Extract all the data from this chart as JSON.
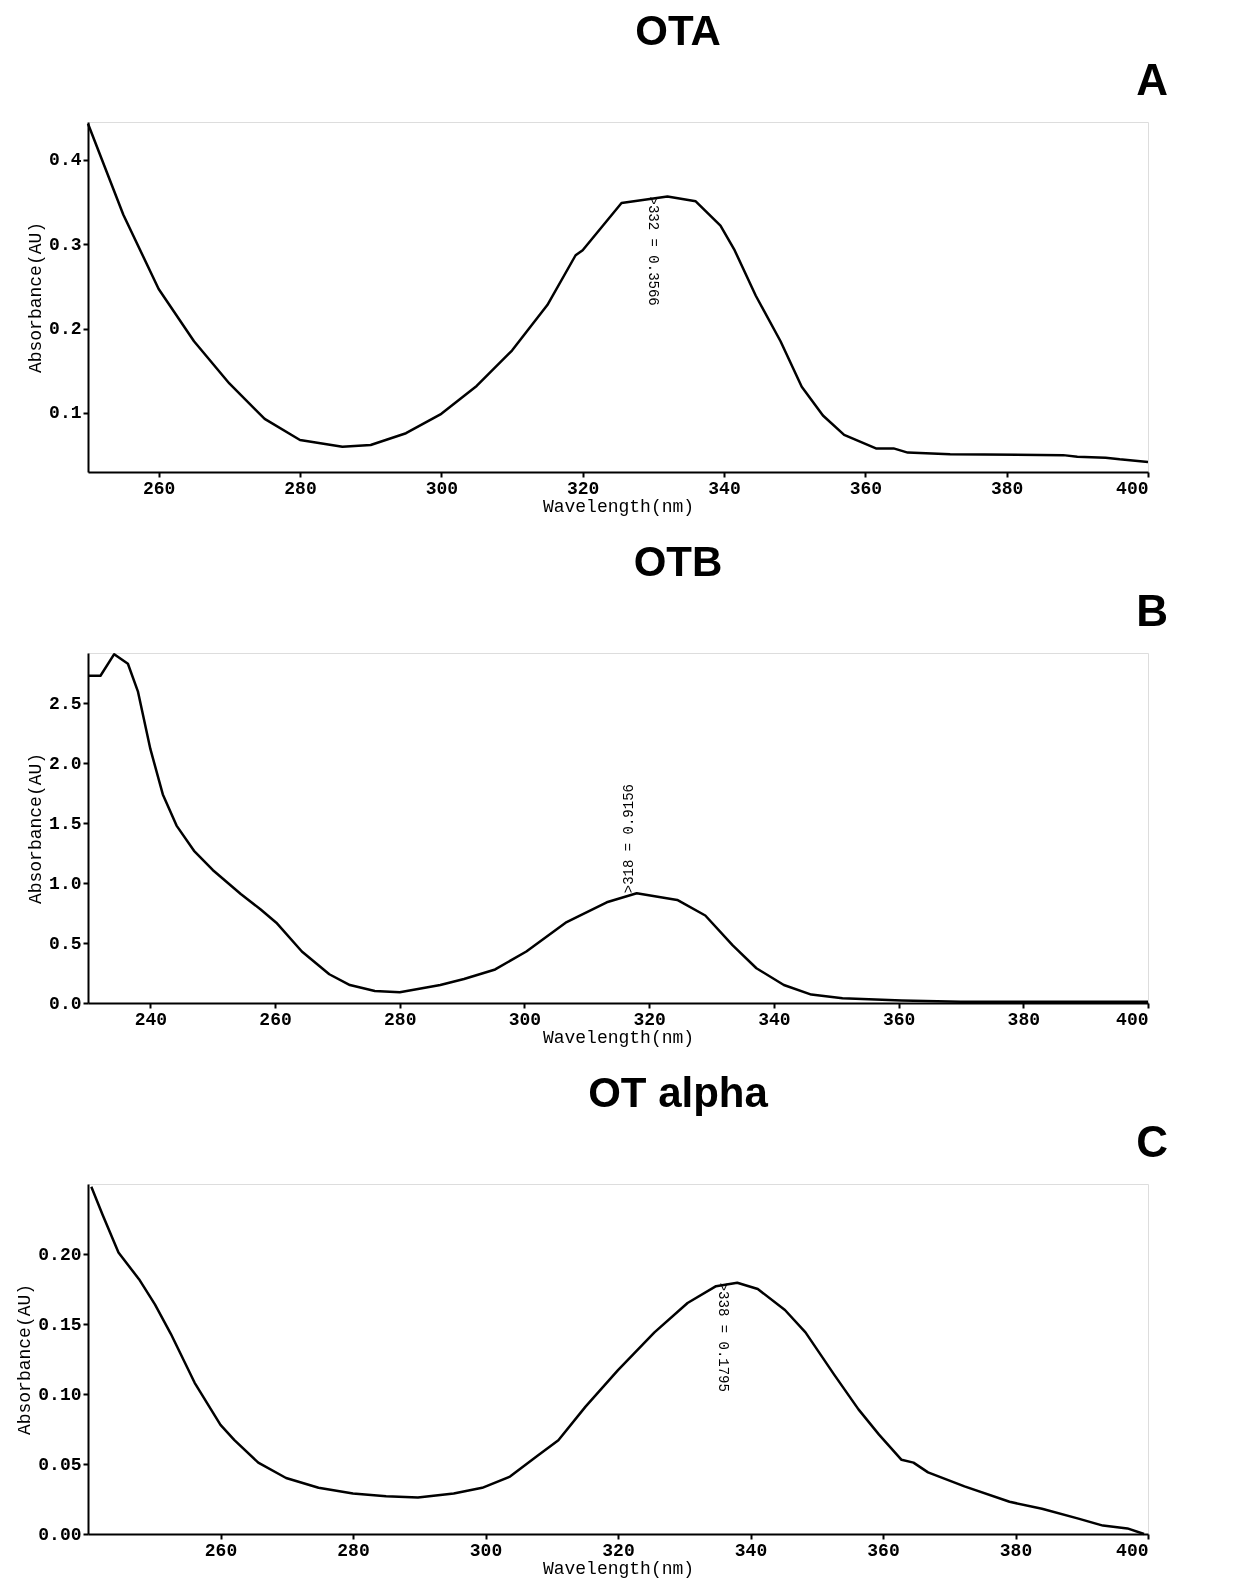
{
  "chart_data": [
    {
      "type": "line",
      "title": "OTA",
      "xlabel": "Wavelength(nm)",
      "ylabel": "Absorbance(AU)",
      "annotations": [
        "A",
        {
          "text": ">332 = 0.3566",
          "x": 332,
          "y": 0.3566
        }
      ],
      "xlim": [
        250,
        400
      ],
      "xticks": [
        260,
        280,
        300,
        320,
        340,
        360,
        380,
        400
      ],
      "ylim": [
        0.03,
        0.445
      ],
      "yticks": [
        {
          "value": 0.1,
          "label": "0.1"
        },
        {
          "value": 0.2,
          "label": "0.2"
        },
        {
          "value": 0.3,
          "label": "0.3"
        },
        {
          "value": 0.4,
          "label": "0.4"
        }
      ],
      "x": [
        250,
        255,
        260,
        265,
        270,
        275,
        280,
        286,
        290,
        295,
        300,
        305,
        310,
        315,
        319,
        320,
        325.5,
        332,
        336,
        339.5,
        341.5,
        344.5,
        348,
        351,
        354,
        357,
        361.5,
        364,
        366,
        372,
        388,
        390,
        394,
        396,
        400
      ],
      "series": [
        {
          "color": "#000000",
          "values": [
            0.443,
            0.335,
            0.247,
            0.185,
            0.135,
            0.093,
            0.068,
            0.06,
            0.062,
            0.076,
            0.099,
            0.132,
            0.174,
            0.228,
            0.287,
            0.293,
            0.349,
            0.3566,
            0.351,
            0.322,
            0.293,
            0.239,
            0.185,
            0.131,
            0.097,
            0.074,
            0.058,
            0.058,
            0.053,
            0.051,
            0.05,
            0.048,
            0.047,
            0.045,
            0.042
          ]
        }
      ]
    },
    {
      "type": "line",
      "title": "OTB",
      "xlabel": "Wavelength(nm)",
      "ylabel": "Absorbance(AU)",
      "annotations": [
        "B",
        {
          "text": ">318 = 0.9156",
          "x": 318,
          "y": 0.9156
        }
      ],
      "xlim": [
        230,
        400
      ],
      "xticks": [
        240,
        260,
        280,
        300,
        320,
        340,
        360,
        380,
        400
      ],
      "ylim": [
        0,
        2.92
      ],
      "yticks": [
        {
          "value": 0,
          "label": "0.0"
        },
        {
          "value": 0.5,
          "label": "0.5"
        },
        {
          "value": 1,
          "label": "1.0"
        },
        {
          "value": 1.5,
          "label": "1.5"
        },
        {
          "value": 2,
          "label": "2.0"
        },
        {
          "value": 2.5,
          "label": "2.5"
        }
      ],
      "x": [
        230,
        232,
        234.2,
        236.4,
        238,
        240,
        242,
        244.2,
        247,
        250,
        254.5,
        257.7,
        260.2,
        264.3,
        268.7,
        272,
        276,
        280,
        286.5,
        290.3,
        295.3,
        300.3,
        306.6,
        313.2,
        318,
        324.5,
        329,
        333.4,
        337.2,
        341.6,
        346,
        351,
        360.5,
        370,
        400
      ],
      "series": [
        {
          "color": "#000000",
          "values": [
            2.73,
            2.73,
            2.91,
            2.83,
            2.6,
            2.12,
            1.74,
            1.48,
            1.27,
            1.11,
            0.91,
            0.78,
            0.67,
            0.43,
            0.24,
            0.15,
            0.1,
            0.09,
            0.15,
            0.2,
            0.28,
            0.43,
            0.67,
            0.84,
            0.9156,
            0.86,
            0.73,
            0.48,
            0.29,
            0.15,
            0.07,
            0.04,
            0.02,
            0.01,
            0.01
          ]
        }
      ]
    },
    {
      "type": "line",
      "title": "OT alpha",
      "xlabel": "Wavelength(nm)",
      "ylabel": "Absorbance(AU)",
      "annotations": [
        "C",
        {
          "text": ">338 = 0.1795",
          "x": 338,
          "y": 0.1795
        }
      ],
      "xlim": [
        240,
        400
      ],
      "xticks": [
        260,
        280,
        300,
        320,
        340,
        360,
        380,
        400
      ],
      "ylim": [
        0,
        0.25
      ],
      "yticks": [
        {
          "value": 0,
          "label": "0.00"
        },
        {
          "value": 0.05,
          "label": "0.05"
        },
        {
          "value": 0.1,
          "label": "0.10"
        },
        {
          "value": 0.15,
          "label": "0.15"
        },
        {
          "value": 0.2,
          "label": "0.20"
        }
      ],
      "x": [
        240.5,
        242.2,
        244.6,
        247.7,
        250.1,
        252.5,
        256.1,
        260,
        262.1,
        265.7,
        269.9,
        274.8,
        280,
        285,
        289.8,
        295.2,
        299.5,
        303.7,
        307.9,
        311,
        315.1,
        320,
        325.5,
        330.5,
        334.8,
        338,
        341.1,
        345.2,
        348.3,
        352.6,
        356.3,
        359.4,
        362.8,
        364.6,
        366.8,
        372.3,
        379.1,
        384,
        389.5,
        393.2,
        396.9,
        399.4
      ],
      "series": [
        {
          "color": "#000000",
          "values": [
            0.248,
            0.228,
            0.201,
            0.182,
            0.164,
            0.143,
            0.108,
            0.078,
            0.067,
            0.051,
            0.04,
            0.033,
            0.029,
            0.027,
            0.026,
            0.029,
            0.033,
            0.041,
            0.056,
            0.067,
            0.091,
            0.117,
            0.144,
            0.165,
            0.177,
            0.1795,
            0.175,
            0.16,
            0.144,
            0.114,
            0.089,
            0.071,
            0.053,
            0.051,
            0.044,
            0.034,
            0.023,
            0.018,
            0.011,
            0.006,
            0.004,
            0.0
          ]
        }
      ]
    }
  ]
}
